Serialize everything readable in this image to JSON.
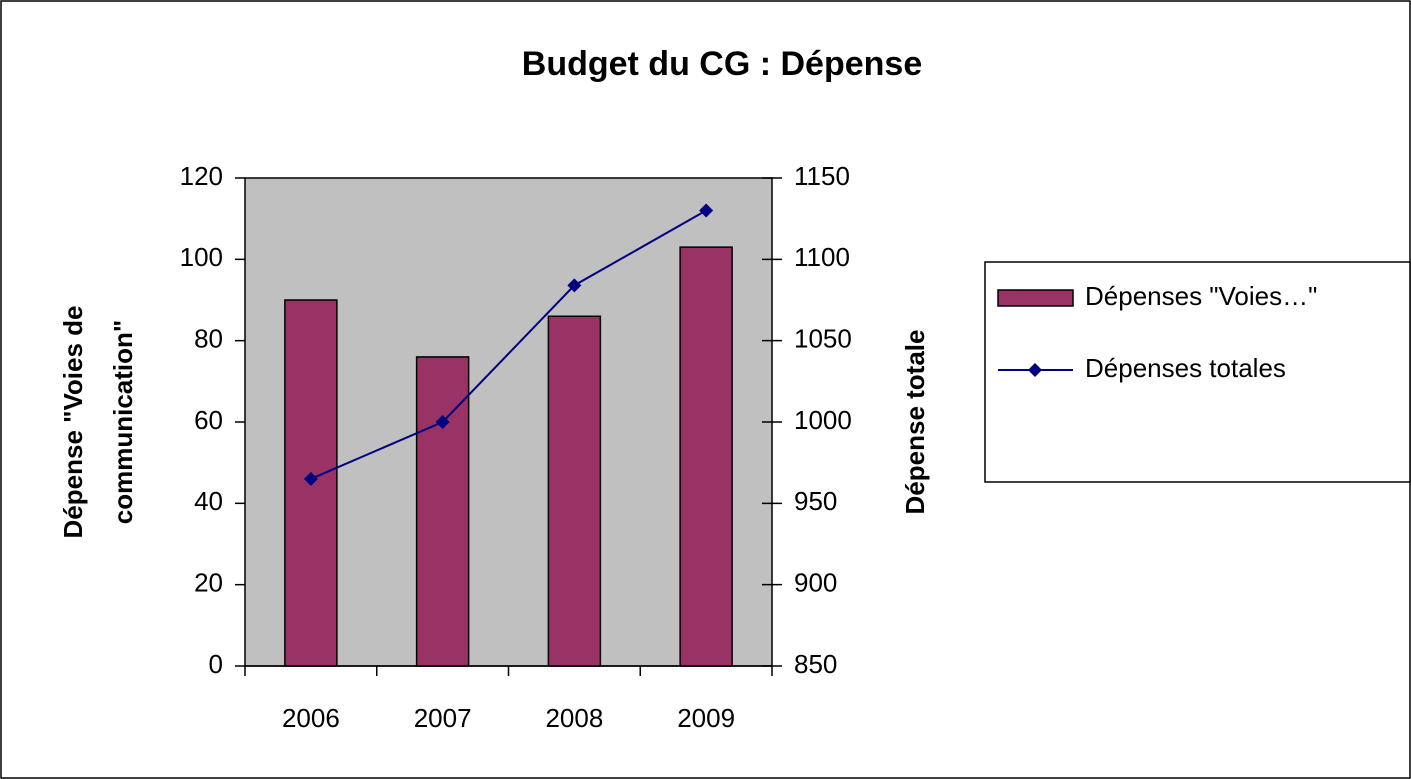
{
  "chart_data": {
    "type": "bar-line",
    "title": "Budget du CG : Dépense",
    "categories": [
      "2006",
      "2007",
      "2008",
      "2009"
    ],
    "ylabel": [
      "Dépense \"Voies de",
      "communication\""
    ],
    "y2label": "Dépense totale",
    "ylim": [
      0,
      120
    ],
    "yticks": [
      0,
      20,
      40,
      60,
      80,
      100,
      120
    ],
    "y2lim": [
      850,
      1150
    ],
    "y2ticks": [
      850,
      900,
      950,
      1000,
      1050,
      1100,
      1150
    ],
    "plot_background": "#c0c0c0",
    "legend": "right",
    "series": [
      {
        "name": "Dépenses \"Voies…\"",
        "type": "bar",
        "color": "#993366",
        "values": [
          90,
          76,
          86,
          103
        ]
      },
      {
        "name": "Dépenses totales",
        "type": "line",
        "axis": "y2",
        "color": "#000080",
        "values": [
          965,
          1000,
          1084,
          1130
        ]
      }
    ]
  }
}
